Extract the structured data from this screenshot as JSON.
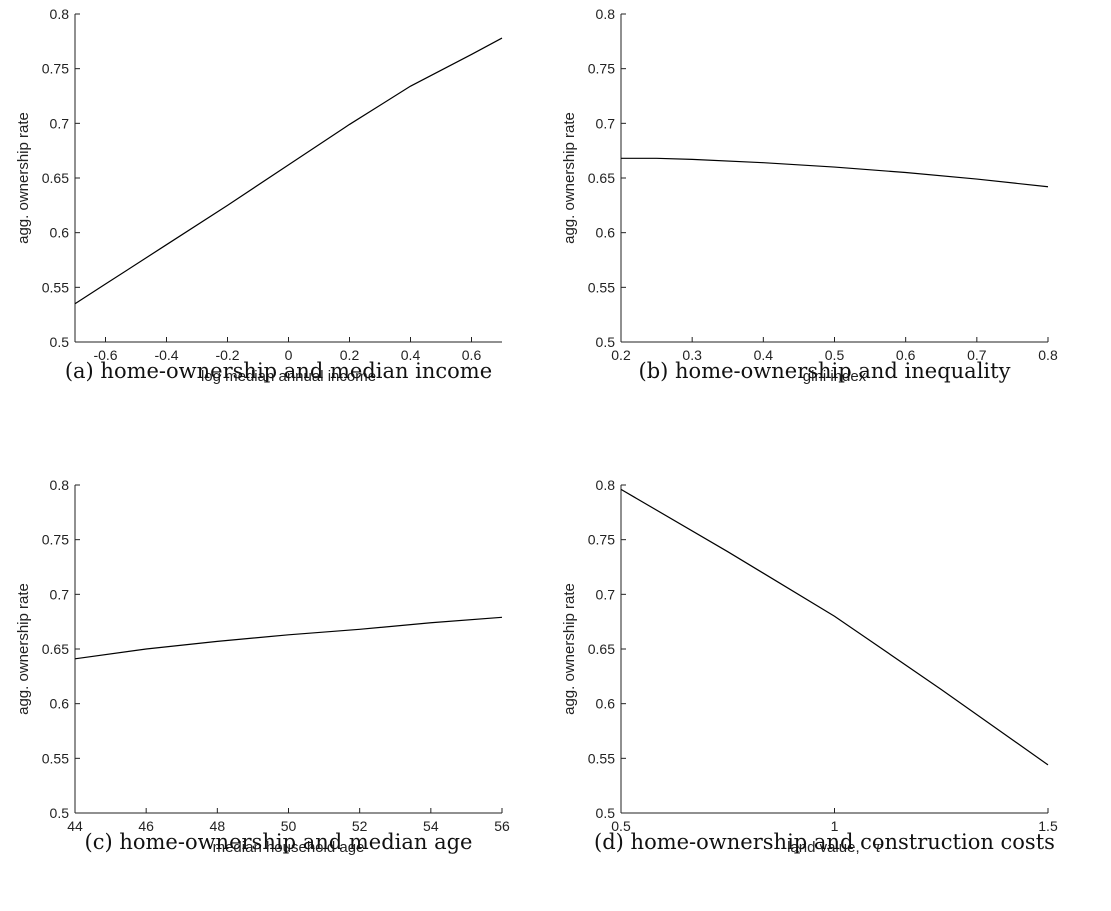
{
  "chart_data": [
    {
      "type": "line",
      "caption": "(a) home-ownership and median income",
      "xlabel": "log median annual income",
      "ylabel": "agg. ownership rate",
      "xlim": [
        -0.7,
        0.7
      ],
      "ylim": [
        0.5,
        0.8
      ],
      "xticks": [
        -0.6,
        -0.4,
        -0.2,
        0,
        0.2,
        0.4,
        0.6
      ],
      "xtick_labels": [
        "-0.6",
        "-0.4",
        "-0.2",
        "0",
        "0.2",
        "0.4",
        "0.6"
      ],
      "yticks": [
        0.5,
        0.55,
        0.6,
        0.65,
        0.7,
        0.75,
        0.8
      ],
      "ytick_labels": [
        "0.5",
        "0.55",
        "0.6",
        "0.65",
        "0.7",
        "0.75",
        "0.8"
      ],
      "grid": false,
      "series": [
        {
          "x": [
            -0.7,
            -0.6,
            -0.4,
            -0.2,
            0,
            0.2,
            0.4,
            0.6,
            0.7
          ],
          "y": [
            0.535,
            0.553,
            0.589,
            0.625,
            0.662,
            0.699,
            0.734,
            0.763,
            0.778
          ]
        }
      ]
    },
    {
      "type": "line",
      "caption": "(b) home-ownership and inequality",
      "xlabel": "gini index",
      "ylabel": "agg. ownership rate",
      "xlim": [
        0.2,
        0.8
      ],
      "ylim": [
        0.5,
        0.8
      ],
      "xticks": [
        0.2,
        0.3,
        0.4,
        0.5,
        0.6,
        0.7,
        0.8
      ],
      "xtick_labels": [
        "0.2",
        "0.3",
        "0.4",
        "0.5",
        "0.6",
        "0.7",
        "0.8"
      ],
      "yticks": [
        0.5,
        0.55,
        0.6,
        0.65,
        0.7,
        0.75,
        0.8
      ],
      "ytick_labels": [
        "0.5",
        "0.55",
        "0.6",
        "0.65",
        "0.7",
        "0.75",
        "0.8"
      ],
      "grid": false,
      "series": [
        {
          "x": [
            0.2,
            0.25,
            0.3,
            0.4,
            0.5,
            0.6,
            0.7,
            0.8
          ],
          "y": [
            0.668,
            0.668,
            0.667,
            0.664,
            0.66,
            0.655,
            0.649,
            0.642
          ]
        }
      ]
    },
    {
      "type": "line",
      "caption": "(c) home-ownership and median age",
      "xlabel": "median household age",
      "ylabel": "agg. ownership rate",
      "xlim": [
        44,
        56
      ],
      "ylim": [
        0.5,
        0.8
      ],
      "xticks": [
        44,
        46,
        48,
        50,
        52,
        54,
        56
      ],
      "xtick_labels": [
        "44",
        "46",
        "48",
        "50",
        "52",
        "54",
        "56"
      ],
      "yticks": [
        0.5,
        0.55,
        0.6,
        0.65,
        0.7,
        0.75,
        0.8
      ],
      "ytick_labels": [
        "0.5",
        "0.55",
        "0.6",
        "0.65",
        "0.7",
        "0.75",
        "0.8"
      ],
      "grid": false,
      "series": [
        {
          "x": [
            44,
            46,
            48,
            50,
            52,
            54,
            56
          ],
          "y": [
            0.641,
            0.65,
            0.657,
            0.663,
            0.668,
            0.674,
            0.679
          ]
        }
      ]
    },
    {
      "type": "line",
      "caption": "(d) home-ownership and construction costs",
      "xlabel": "land value,",
      "xlabel_symbol": "τ",
      "ylabel": "agg. ownership rate",
      "xlim": [
        0.5,
        1.5
      ],
      "ylim": [
        0.5,
        0.8
      ],
      "xticks": [
        0.5,
        1,
        1.5
      ],
      "xtick_labels": [
        "0.5",
        "1",
        "1.5"
      ],
      "yticks": [
        0.5,
        0.55,
        0.6,
        0.65,
        0.7,
        0.75,
        0.8
      ],
      "ytick_labels": [
        "0.5",
        "0.55",
        "0.6",
        "0.65",
        "0.7",
        "0.75",
        "0.8"
      ],
      "grid": false,
      "series": [
        {
          "x": [
            0.5,
            0.75,
            1.0,
            1.25,
            1.5
          ],
          "y": [
            0.796,
            0.739,
            0.68,
            0.613,
            0.544
          ]
        }
      ]
    }
  ]
}
